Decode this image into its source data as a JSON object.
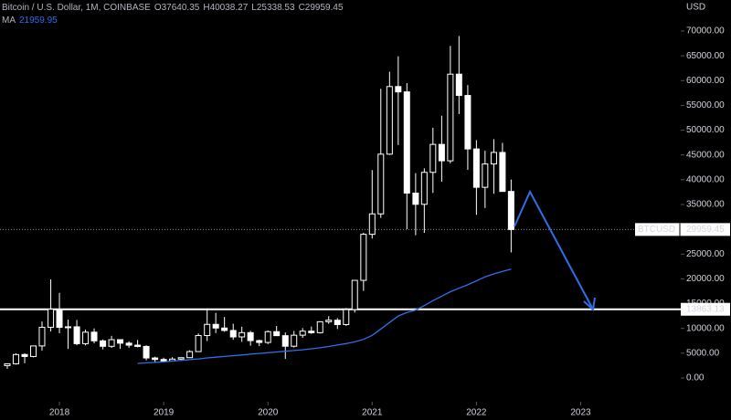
{
  "chart_data": {
    "type": "candlestick",
    "header": {
      "symbol": "Bitcoin / U.S. Dollar, 1M, COINBASE",
      "ohlc": [
        {
          "label": "O",
          "value": 37640.35
        },
        {
          "label": "H",
          "value": 40038.27
        },
        {
          "label": "L",
          "value": 25338.53
        },
        {
          "label": "C",
          "value": 29959.45
        }
      ],
      "ma_label": "MA",
      "ma_value": 21959.95
    },
    "y_axis_label": "USD",
    "x": [
      2017.5,
      2017.583,
      2017.667,
      2017.75,
      2017.833,
      2017.917,
      2018,
      2018.083,
      2018.167,
      2018.25,
      2018.333,
      2018.417,
      2018.5,
      2018.583,
      2018.667,
      2018.75,
      2018.833,
      2018.917,
      2019,
      2019.083,
      2019.167,
      2019.25,
      2019.333,
      2019.417,
      2019.5,
      2019.583,
      2019.667,
      2019.75,
      2019.833,
      2019.917,
      2020,
      2020.083,
      2020.167,
      2020.25,
      2020.333,
      2020.417,
      2020.5,
      2020.583,
      2020.667,
      2020.75,
      2020.833,
      2020.917,
      2021,
      2021.083,
      2021.167,
      2021.25,
      2021.333,
      2021.417,
      2021.5,
      2021.583,
      2021.667,
      2021.75,
      2021.833,
      2021.917,
      2022,
      2022.083,
      2022.167,
      2022.25,
      2022.333
    ],
    "open": [
      2500,
      2870,
      4735,
      4338,
      6468,
      10233,
      13880,
      10221,
      10325,
      6923,
      9245,
      7495,
      6390,
      7730,
      7025,
      6625,
      6370,
      4040,
      3740,
      3440,
      3820,
      4100,
      5330,
      8570,
      10820,
      10080,
      9590,
      8290,
      9150,
      7540,
      7170,
      9350,
      8540,
      6410,
      8630,
      9450,
      9140,
      11350,
      11660,
      10780,
      13800,
      19700,
      28990,
      33110,
      45160,
      58800,
      57720,
      37300,
      35040,
      41490,
      47130,
      43820,
      61300,
      57000,
      46210,
      38470,
      43180,
      45510,
      37640.35
    ],
    "high": [
      2950,
      4980,
      5000,
      6470,
      11400,
      19891,
      17176,
      11788,
      11710,
      9765,
      10000,
      7775,
      8500,
      7760,
      7410,
      7680,
      6600,
      4310,
      4100,
      4200,
      4140,
      5600,
      9000,
      13880,
      13140,
      12320,
      10950,
      10350,
      9500,
      7740,
      9580,
      10500,
      9180,
      9480,
      10070,
      10380,
      11450,
      12470,
      12090,
      14100,
      19500,
      29300,
      41950,
      58350,
      61790,
      64900,
      59500,
      41330,
      42300,
      50500,
      52920,
      67000,
      69000,
      59100,
      47990,
      45850,
      48190,
      47440,
      40038.27
    ],
    "low": [
      1850,
      2700,
      2972,
      4160,
      5500,
      9400,
      9035,
      5873,
      6600,
      6575,
      7000,
      5780,
      6070,
      5880,
      6100,
      6180,
      3550,
      3130,
      3350,
      3380,
      3700,
      4080,
      5320,
      7450,
      9070,
      9340,
      7710,
      7300,
      6520,
      6430,
      6850,
      8470,
      3850,
      6150,
      8100,
      8900,
      8980,
      10930,
      9880,
      10520,
      13200,
      17570,
      28130,
      32300,
      45000,
      47000,
      30000,
      28800,
      29280,
      37330,
      39600,
      43300,
      53250,
      42000,
      32930,
      34300,
      37170,
      37700,
      25338.53
    ],
    "close": [
      2870,
      4735,
      4338,
      6468,
      10233,
      13880,
      10221,
      10325,
      6923,
      9245,
      7495,
      6390,
      7730,
      7025,
      6625,
      6370,
      4040,
      3740,
      3440,
      3820,
      4100,
      5330,
      8570,
      10820,
      10080,
      9590,
      8290,
      9150,
      7540,
      7170,
      9350,
      8540,
      6410,
      8630,
      9450,
      9140,
      11350,
      11660,
      10780,
      13800,
      19700,
      28990,
      33110,
      45160,
      58800,
      57720,
      37300,
      35040,
      41490,
      47130,
      43820,
      61300,
      57000,
      46210,
      38470,
      43180,
      45510,
      37640.35,
      29959.45
    ],
    "ma": {
      "name": "MA",
      "color": "#2f6fe8",
      "values": [
        null,
        null,
        null,
        null,
        null,
        null,
        null,
        null,
        null,
        null,
        null,
        null,
        null,
        null,
        null,
        2950,
        3050,
        3150,
        3250,
        3400,
        3550,
        3700,
        3850,
        4050,
        4200,
        4350,
        4500,
        4650,
        4800,
        4950,
        5100,
        5250,
        5400,
        5550,
        5700,
        5900,
        6100,
        6350,
        6650,
        6950,
        7300,
        7800,
        8600,
        9900,
        11200,
        12500,
        13200,
        13700,
        14600,
        15600,
        16500,
        17400,
        18100,
        18800,
        19600,
        20400,
        21000,
        21500,
        21959.95
      ]
    },
    "candle_color": "#ffffff",
    "xlim": [
      2017.43,
      2023.96
    ],
    "xticks": [
      2018,
      2019,
      2020,
      2021,
      2022,
      2023
    ],
    "ylim": [
      -4790,
      76260
    ],
    "yticks": [
      {
        "value": 0,
        "label": "0.00"
      },
      {
        "value": 5000,
        "label": "5000.00"
      },
      {
        "value": 10000,
        "label": "10000.00"
      },
      {
        "value": 15000,
        "label": "15000.00"
      },
      {
        "value": 20000,
        "label": "20000.00"
      },
      {
        "value": 25000,
        "label": "25000.00"
      },
      {
        "value": 30000,
        "label": "30000.00"
      },
      {
        "value": 35000,
        "label": "35000.00"
      },
      {
        "value": 40000,
        "label": "40000.00"
      },
      {
        "value": 45000,
        "label": "45000.00"
      },
      {
        "value": 50000,
        "label": "50000.00"
      },
      {
        "value": 55000,
        "label": "55000.00"
      },
      {
        "value": 60000,
        "label": "60000.00"
      },
      {
        "value": 65000,
        "label": "65000.00"
      },
      {
        "value": 70000,
        "label": "70000.00"
      }
    ],
    "last_price": {
      "label": "BTCUSD",
      "value": 29959.45
    },
    "level": 13863.13
  }
}
